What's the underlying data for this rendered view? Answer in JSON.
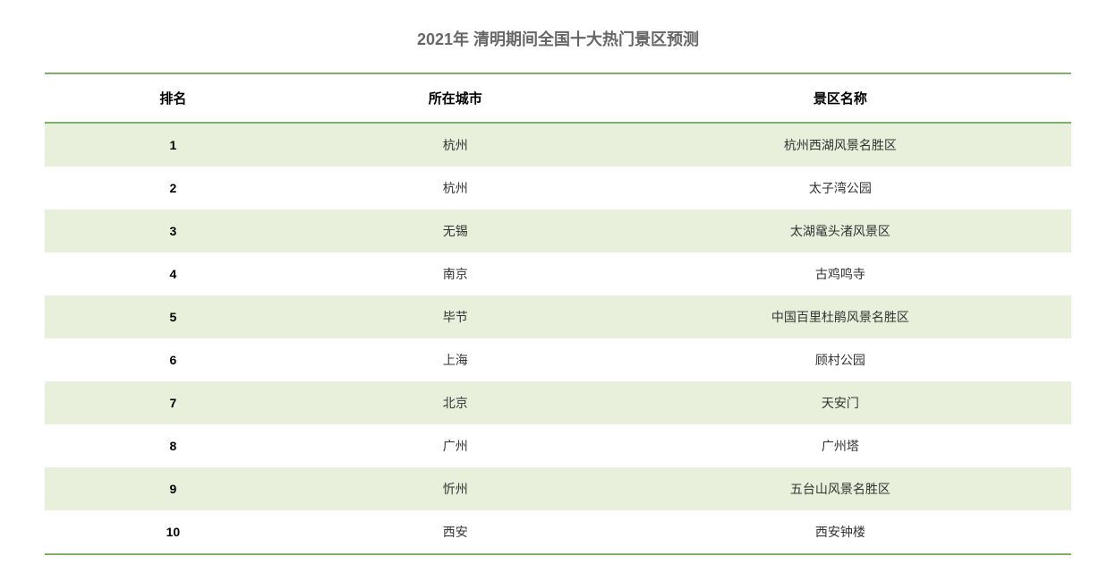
{
  "title": "2021年 清明期间全国十大热门景区预测",
  "table": {
    "columns": [
      "排名",
      "所在城市",
      "景区名称"
    ],
    "rows": [
      {
        "rank": "1",
        "city": "杭州",
        "spot": "杭州西湖风景名胜区"
      },
      {
        "rank": "2",
        "city": "杭州",
        "spot": "太子湾公园"
      },
      {
        "rank": "3",
        "city": "无锡",
        "spot": "太湖鼋头渚风景区"
      },
      {
        "rank": "4",
        "city": "南京",
        "spot": "古鸡鸣寺"
      },
      {
        "rank": "5",
        "city": "毕节",
        "spot": "中国百里杜鹃风景名胜区"
      },
      {
        "rank": "6",
        "city": "上海",
        "spot": "顾村公园"
      },
      {
        "rank": "7",
        "city": "北京",
        "spot": "天安门"
      },
      {
        "rank": "8",
        "city": "广州",
        "spot": "广州塔"
      },
      {
        "rank": "9",
        "city": "忻州",
        "spot": "五台山风景名胜区"
      },
      {
        "rank": "10",
        "city": "西安",
        "spot": "西安钟楼"
      }
    ],
    "styling": {
      "odd_row_bg": "#e8f0db",
      "even_row_bg": "#ffffff",
      "border_color": "#7fb069",
      "title_color": "#666666",
      "header_color": "#000000",
      "cell_color": "#333333",
      "rank_color": "#000000",
      "title_fontsize": 18,
      "header_fontsize": 15,
      "cell_fontsize": 14
    }
  }
}
